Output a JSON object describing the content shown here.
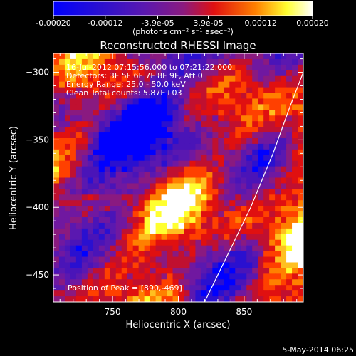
{
  "colorbar": {
    "tick_labels": [
      "-0.00020",
      "-0.00012",
      "-3.9e-05",
      "3.9e-05",
      "0.00012",
      "0.00020"
    ],
    "tick_values": [
      -0.0002,
      -0.00012,
      -3.9e-05,
      3.9e-05,
      0.00012,
      0.0002
    ],
    "range": [
      -0.0002,
      0.0002
    ],
    "unit_label": "(photons cm⁻² s⁻¹ asec⁻²)",
    "colors": [
      "#0000ff",
      "#4400aa",
      "#7a1fa0",
      "#d0201a",
      "#ff7a00",
      "#ffff40",
      "#ffffff"
    ]
  },
  "chart_data": {
    "type": "heatmap",
    "title": "Reconstructed RHESSI Image",
    "xlabel": "Heliocentric X (arcsec)",
    "ylabel": "Heliocentric Y (arcsec)",
    "xlim": [
      705,
      895
    ],
    "ylim": [
      -470,
      -286
    ],
    "x_ticks": [
      750,
      800,
      850
    ],
    "y_ticks": [
      -300,
      -350,
      -400,
      -450
    ],
    "x_tick_labels": [
      "750",
      "800",
      "850"
    ],
    "y_tick_labels": [
      "-300",
      "-350",
      "-400",
      "-450"
    ],
    "limb_curve": [
      [
        820,
        -470
      ],
      [
        835,
        -440
      ],
      [
        855,
        -400
      ],
      [
        872,
        -360
      ],
      [
        885,
        -325
      ],
      [
        895,
        -300
      ]
    ],
    "info_lines": [
      "16-Jul-2012 07:15:56.000 to 07:21:22.000",
      "Detectors: 3F 5F 6F 7F 8F 9F, Att 0",
      "Energy Range: 25.0 - 50.0 keV",
      "Clean     Total counts: 5.87E+03"
    ],
    "peak_label": "Position of Peak = [890,-469]"
  },
  "footer": {
    "timestamp": "5-May-2014 06:25"
  }
}
